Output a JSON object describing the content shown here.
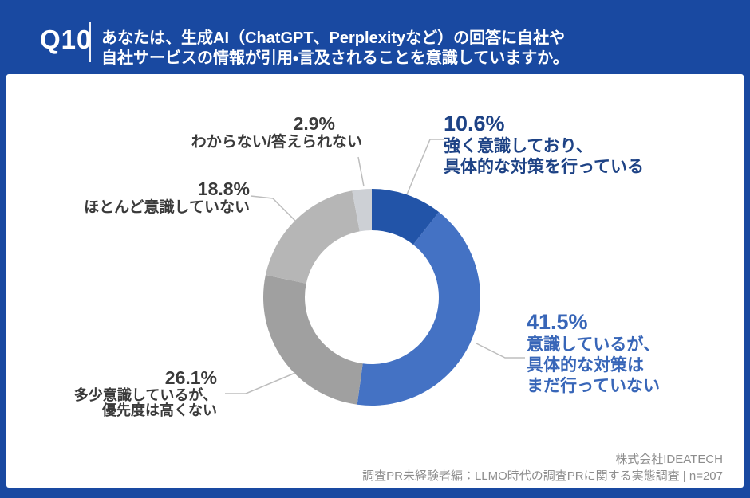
{
  "page": {
    "background_color": "#1949a1",
    "card_color": "#ffffff",
    "header": {
      "question_no": "Q10",
      "question_line1": "あなたは、生成AI（ChatGPT、Perplexityなど）の回答に自社や",
      "question_line2": "自社サービスの情報が引用・言及されることを意識していますか。"
    },
    "footer": {
      "company": "株式会社IDEATECH",
      "survey_caption": "調査PR未経験者編：LLMO時代の調査PRに関する実態調査 | n=207"
    }
  },
  "chart_data": {
    "type": "pie",
    "subtype": "donut",
    "title": "あなたは、生成AI（ChatGPT、Perplexityなど）の回答に自社や自社サービスの情報が引用・言及されることを意識していますか。",
    "sample_size": 207,
    "unit": "%",
    "start_angle_deg": 0,
    "direction": "clockwise",
    "legend": "none",
    "leader_line_color": "#bdbdbd",
    "segments": [
      {
        "label": "強く意識しており、具体的な対策を行っている",
        "value": 10.6,
        "pct_label": "10.6%",
        "label_lines": [
          "強く意識しており、",
          "具体的な対策を行っている"
        ],
        "color": "#2254a8",
        "text_color": "#1d4285"
      },
      {
        "label": "意識しているが、具体的な対策はまだ行っていない",
        "value": 41.5,
        "pct_label": "41.5%",
        "label_lines": [
          "意識しているが、",
          "具体的な対策は",
          "まだ行っていない"
        ],
        "color": "#4472c4",
        "text_color": "#3866b8"
      },
      {
        "label": "多少意識しているが、優先度は高くない",
        "value": 26.1,
        "pct_label": "26.1%",
        "label_lines": [
          "多少意識しているが、",
          "優先度は高くない"
        ],
        "color": "#a0a0a0",
        "text_color": "#3a3a3a"
      },
      {
        "label": "ほとんど意識していない",
        "value": 18.8,
        "pct_label": "18.8%",
        "label_lines": [
          "ほとんど意識していない"
        ],
        "color": "#b6b6b6",
        "text_color": "#3a3a3a"
      },
      {
        "label": "わからない/答えられない",
        "value": 2.9,
        "pct_label": "2.9%",
        "label_lines": [
          "わからない/答えられない"
        ],
        "color": "#cdd0d5",
        "text_color": "#3a3a3a"
      }
    ]
  }
}
